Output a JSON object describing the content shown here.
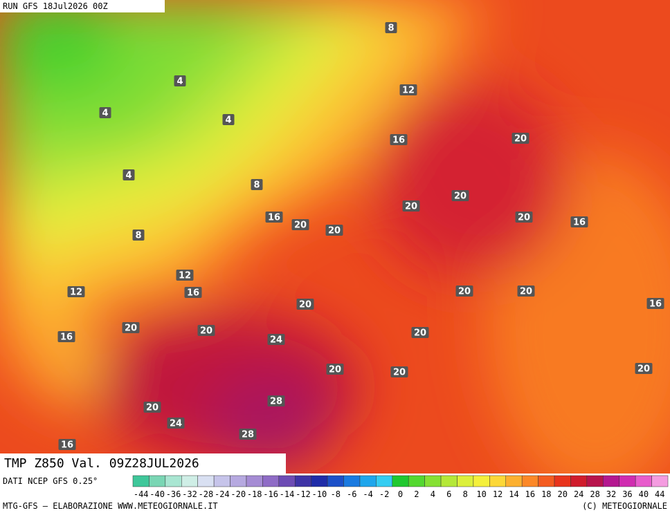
{
  "header": {
    "run": "RUN GFS 18Jul2026 00Z"
  },
  "map": {
    "title": "TMP Z850 Val. 09Z28JUL2026",
    "contour_labels": [
      "8",
      "12",
      "4",
      "4",
      "4",
      "16",
      "20",
      "4",
      "8",
      "20",
      "20",
      "16",
      "20",
      "20",
      "20",
      "16",
      "8",
      "12",
      "12",
      "16",
      "20",
      "20",
      "16",
      "20",
      "20",
      "20",
      "20",
      "24",
      "16",
      "20",
      "20",
      "20",
      "20",
      "28",
      "24",
      "28",
      "16"
    ]
  },
  "legend": {
    "source": "DATI NCEP GFS 0.25°",
    "ticks": [
      "-44",
      "-40",
      "-36",
      "-32",
      "-28",
      "-24",
      "-20",
      "-18",
      "-16",
      "-14",
      "-12",
      "-10",
      "-8",
      "-6",
      "-4",
      "-2",
      "0",
      "2",
      "4",
      "6",
      "8",
      "10",
      "12",
      "14",
      "16",
      "18",
      "20",
      "24",
      "28",
      "32",
      "36",
      "40",
      "44"
    ],
    "colors": [
      "#3fc79a",
      "#7ad6b4",
      "#a9e6d2",
      "#cfeee6",
      "#d9e0f2",
      "#c6c4ea",
      "#b6a9e0",
      "#a58cd4",
      "#8f6cc6",
      "#6d4cb4",
      "#3f34a6",
      "#1f2ca8",
      "#1c50c8",
      "#1a7ae0",
      "#1fa6ec",
      "#35cdf2",
      "#20c830",
      "#54d830",
      "#86e034",
      "#b4e838",
      "#dcf03c",
      "#f4f03c",
      "#fcd838",
      "#fcb030",
      "#fc8828",
      "#f45c20",
      "#e8341c",
      "#d01c2c",
      "#b8144c",
      "#b41890",
      "#d02cb0",
      "#e85ccc",
      "#f49ce0"
    ]
  },
  "footer": {
    "left": "MTG-GFS – ELABORAZIONE WWW.METEOGIORNALE.IT",
    "right": "(C) METEOGIORNALE"
  }
}
